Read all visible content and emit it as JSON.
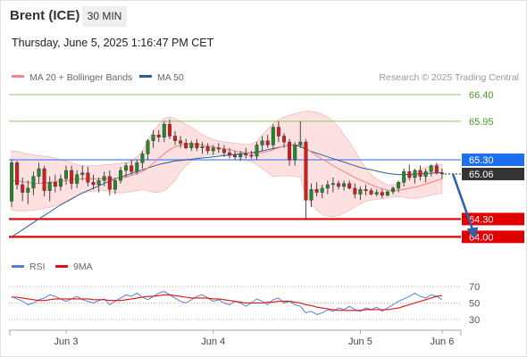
{
  "header": {
    "title": "Brent (ICE)",
    "timeframe": "30 MIN",
    "datetime": "Thursday, June 5, 2025 1:16:47 PM CET"
  },
  "legend": {
    "ma20_label": "MA 20 + Bollinger Bands",
    "ma50_label": "MA 50",
    "credit": "Research © 2025 Trading Central",
    "rsi_label": "RSI",
    "rsi_ma_label": "9MA"
  },
  "colors": {
    "candle_up": "#1f8a2a",
    "candle_down": "#d41e1e",
    "ma20": "#f08a8a",
    "ma50": "#2f5a96",
    "bollinger_fill": "#fde0e0",
    "support": "#e00000",
    "resistance": "#8cc766",
    "pivot": "#5b8ff0",
    "current_price": "#333333",
    "rsi": "#5a7fd6",
    "rsi_ma": "#dd1111",
    "arrow": "#2a64b0"
  },
  "chart_data": [
    {
      "type": "candlestick",
      "x_axis": {
        "ticks": [
          "Jun 3",
          "Jun 4",
          "Jun 5",
          "Jun 6"
        ],
        "tick_index": [
          10,
          37,
          64,
          79
        ]
      },
      "ylim": [
        63.9,
        66.55
      ],
      "levels": [
        {
          "value": 66.4,
          "label": "66.40",
          "kind": "resistance"
        },
        {
          "value": 65.95,
          "label": "65.95",
          "kind": "resistance"
        },
        {
          "value": 65.3,
          "label": "65.30",
          "kind": "pivot"
        },
        {
          "value": 64.3,
          "label": "64.30",
          "kind": "support"
        },
        {
          "value": 64.0,
          "label": "64.00",
          "kind": "support"
        }
      ],
      "current_price": {
        "value": 65.06,
        "label": "65.06"
      },
      "projection": {
        "from_index": 81,
        "from_value": 65.06,
        "to_index": 85,
        "to_value": 64.0
      },
      "ohlc": [
        [
          64.6,
          65.3,
          64.5,
          65.25
        ],
        [
          65.25,
          65.28,
          64.8,
          64.88
        ],
        [
          64.88,
          65.0,
          64.6,
          64.75
        ],
        [
          64.75,
          64.95,
          64.55,
          64.82
        ],
        [
          64.82,
          65.1,
          64.7,
          65.02
        ],
        [
          65.02,
          65.25,
          64.9,
          65.15
        ],
        [
          65.15,
          65.2,
          64.68,
          64.78
        ],
        [
          64.78,
          65.02,
          64.6,
          64.92
        ],
        [
          64.92,
          65.05,
          64.75,
          64.85
        ],
        [
          64.85,
          65.05,
          64.78,
          64.98
        ],
        [
          64.98,
          65.2,
          64.88,
          65.12
        ],
        [
          65.12,
          65.2,
          64.8,
          64.9
        ],
        [
          64.9,
          65.12,
          64.82,
          65.05
        ],
        [
          65.05,
          65.2,
          64.95,
          65.08
        ],
        [
          65.08,
          65.18,
          64.85,
          64.92
        ],
        [
          64.92,
          65.05,
          64.8,
          64.88
        ],
        [
          64.88,
          65.0,
          64.75,
          64.95
        ],
        [
          64.95,
          65.1,
          64.85,
          65.02
        ],
        [
          65.02,
          65.12,
          64.7,
          64.8
        ],
        [
          64.8,
          65.0,
          64.72,
          64.95
        ],
        [
          64.95,
          65.18,
          64.9,
          65.12
        ],
        [
          65.12,
          65.25,
          65.0,
          65.2
        ],
        [
          65.2,
          65.3,
          65.05,
          65.1
        ],
        [
          65.1,
          65.3,
          65.05,
          65.25
        ],
        [
          65.25,
          65.45,
          65.15,
          65.4
        ],
        [
          65.4,
          65.65,
          65.3,
          65.62
        ],
        [
          65.62,
          65.8,
          65.5,
          65.72
        ],
        [
          65.72,
          65.8,
          65.6,
          65.68
        ],
        [
          65.68,
          65.95,
          65.6,
          65.9
        ],
        [
          65.9,
          65.98,
          65.65,
          65.7
        ],
        [
          65.7,
          65.78,
          65.55,
          65.62
        ],
        [
          65.62,
          65.7,
          65.5,
          65.58
        ],
        [
          65.58,
          65.65,
          65.48,
          65.5
        ],
        [
          65.5,
          65.62,
          65.45,
          65.58
        ],
        [
          65.58,
          65.65,
          65.45,
          65.5
        ],
        [
          65.5,
          65.6,
          65.4,
          65.52
        ],
        [
          65.52,
          65.58,
          65.4,
          65.45
        ],
        [
          65.45,
          65.55,
          65.38,
          65.5
        ],
        [
          65.5,
          65.58,
          65.42,
          65.48
        ],
        [
          65.48,
          65.55,
          65.35,
          65.42
        ],
        [
          65.42,
          65.5,
          65.32,
          65.38
        ],
        [
          65.38,
          65.45,
          65.3,
          65.35
        ],
        [
          65.35,
          65.45,
          65.28,
          65.4
        ],
        [
          65.4,
          65.5,
          65.32,
          65.38
        ],
        [
          65.38,
          65.45,
          65.32,
          65.36
        ],
        [
          65.36,
          65.6,
          65.3,
          65.55
        ],
        [
          65.55,
          65.7,
          65.45,
          65.62
        ],
        [
          65.62,
          65.72,
          65.5,
          65.55
        ],
        [
          65.55,
          65.9,
          65.48,
          65.85
        ],
        [
          65.85,
          65.95,
          65.6,
          65.7
        ],
        [
          65.7,
          65.75,
          65.5,
          65.6
        ],
        [
          65.6,
          65.65,
          65.2,
          65.3
        ],
        [
          65.3,
          65.6,
          65.2,
          65.55
        ],
        [
          65.55,
          65.95,
          65.5,
          65.6
        ],
        [
          65.6,
          65.65,
          64.28,
          64.62
        ],
        [
          64.62,
          64.9,
          64.5,
          64.8
        ],
        [
          64.8,
          64.92,
          64.68,
          64.75
        ],
        [
          64.75,
          64.88,
          64.65,
          64.82
        ],
        [
          64.82,
          64.95,
          64.72,
          64.88
        ],
        [
          64.88,
          65.0,
          64.75,
          64.9
        ],
        [
          64.9,
          64.95,
          64.8,
          64.85
        ],
        [
          64.85,
          64.95,
          64.78,
          64.9
        ],
        [
          64.9,
          64.95,
          64.8,
          64.82
        ],
        [
          64.82,
          64.9,
          64.65,
          64.72
        ],
        [
          64.72,
          64.85,
          64.62,
          64.8
        ],
        [
          64.8,
          64.88,
          64.7,
          64.78
        ],
        [
          64.78,
          64.82,
          64.7,
          64.72
        ],
        [
          64.72,
          64.8,
          64.68,
          64.75
        ],
        [
          64.75,
          64.8,
          64.65,
          64.7
        ],
        [
          64.7,
          64.78,
          64.68,
          64.76
        ],
        [
          64.76,
          64.85,
          64.72,
          64.82
        ],
        [
          64.82,
          64.95,
          64.75,
          64.92
        ],
        [
          64.92,
          65.15,
          64.85,
          65.1
        ],
        [
          65.1,
          65.22,
          64.95,
          65.0
        ],
        [
          65.0,
          65.15,
          64.9,
          65.12
        ],
        [
          65.12,
          65.2,
          64.95,
          65.02
        ],
        [
          65.02,
          65.15,
          64.92,
          65.1
        ],
        [
          65.1,
          65.22,
          65.02,
          65.2
        ],
        [
          65.2,
          65.25,
          65.05,
          65.08
        ],
        [
          65.08,
          65.15,
          64.98,
          65.06
        ]
      ],
      "ma20": [
        64.95,
        64.94,
        64.93,
        64.92,
        64.9,
        64.9,
        64.91,
        64.92,
        64.93,
        64.94,
        64.95,
        64.96,
        64.97,
        64.98,
        64.98,
        64.98,
        64.98,
        64.98,
        64.98,
        64.98,
        64.99,
        65.01,
        65.04,
        65.07,
        65.1,
        65.16,
        65.24,
        65.32,
        65.4,
        65.47,
        65.52,
        65.55,
        65.57,
        65.57,
        65.56,
        65.55,
        65.53,
        65.52,
        65.5,
        65.48,
        65.47,
        65.45,
        65.43,
        65.42,
        65.41,
        65.41,
        65.42,
        65.44,
        65.47,
        65.5,
        65.53,
        65.54,
        65.55,
        65.56,
        65.5,
        65.43,
        65.37,
        65.31,
        65.26,
        65.2,
        65.15,
        65.1,
        65.05,
        65.0,
        64.96,
        64.92,
        64.88,
        64.84,
        64.81,
        64.79,
        64.78,
        64.79,
        64.8,
        64.82,
        64.84,
        64.86,
        64.89,
        64.92,
        64.95,
        64.98
      ],
      "bb_upper": [
        65.45,
        65.44,
        65.42,
        65.4,
        65.38,
        65.37,
        65.36,
        65.35,
        65.33,
        65.3,
        65.28,
        65.25,
        65.22,
        65.2,
        65.2,
        65.2,
        65.2,
        65.22,
        65.22,
        65.23,
        65.24,
        65.25,
        65.28,
        65.35,
        65.45,
        65.62,
        65.78,
        65.9,
        66.0,
        66.02,
        66.0,
        65.95,
        65.9,
        65.85,
        65.78,
        65.72,
        65.68,
        65.64,
        65.62,
        65.6,
        65.59,
        65.58,
        65.57,
        65.56,
        65.56,
        65.62,
        65.72,
        65.82,
        65.92,
        65.98,
        66.02,
        66.05,
        66.08,
        66.1,
        66.12,
        66.12,
        66.1,
        66.07,
        66.02,
        65.95,
        65.85,
        65.72,
        65.6,
        65.45,
        65.3,
        65.15,
        65.05,
        64.98,
        64.92,
        64.88,
        64.88,
        64.9,
        64.95,
        65.02,
        65.08,
        65.14,
        65.18,
        65.2,
        65.22,
        65.22
      ],
      "bb_lower": [
        64.45,
        64.44,
        64.44,
        64.44,
        64.45,
        64.46,
        64.48,
        64.5,
        64.52,
        64.55,
        64.6,
        64.65,
        64.7,
        64.74,
        64.76,
        64.77,
        64.78,
        64.78,
        64.76,
        64.75,
        64.74,
        64.75,
        64.76,
        64.78,
        64.8,
        64.78,
        64.75,
        64.75,
        64.78,
        64.85,
        64.95,
        65.1,
        65.2,
        65.28,
        65.33,
        65.36,
        65.38,
        65.39,
        65.39,
        65.38,
        65.36,
        65.34,
        65.32,
        65.29,
        65.27,
        65.22,
        65.15,
        65.08,
        65.02,
        65.02,
        65.03,
        65.03,
        65.02,
        65.0,
        64.7,
        64.55,
        64.45,
        64.38,
        64.35,
        64.34,
        64.36,
        64.4,
        64.45,
        64.5,
        64.55,
        64.6,
        64.62,
        64.63,
        64.64,
        64.66,
        64.67,
        64.68,
        64.67,
        64.65,
        64.65,
        64.66,
        64.68,
        64.7,
        64.72,
        64.74
      ],
      "ma50": [
        64.0,
        64.06,
        64.12,
        64.18,
        64.24,
        64.3,
        64.36,
        64.42,
        64.48,
        64.54,
        64.59,
        64.64,
        64.69,
        64.74,
        64.78,
        64.82,
        64.86,
        64.9,
        64.94,
        64.98,
        65.01,
        65.04,
        65.07,
        65.1,
        65.13,
        65.16,
        65.19,
        65.22,
        65.24,
        65.26,
        65.28,
        65.29,
        65.3,
        65.31,
        65.32,
        65.33,
        65.34,
        65.35,
        65.36,
        65.37,
        65.38,
        65.39,
        65.4,
        65.41,
        65.42,
        65.43,
        65.45,
        65.47,
        65.49,
        65.51,
        65.53,
        65.55,
        65.55,
        65.52,
        65.48,
        65.44,
        65.41,
        65.38,
        65.35,
        65.32,
        65.29,
        65.26,
        65.23,
        65.2,
        65.17,
        65.15,
        65.13,
        65.11,
        65.09,
        65.07,
        65.06,
        65.05,
        65.05,
        65.05,
        65.06,
        65.06,
        65.07,
        65.07,
        65.08,
        65.08
      ]
    },
    {
      "type": "line",
      "name": "RSI",
      "ylim": [
        25,
        75
      ],
      "levels": [
        {
          "value": 70,
          "label": "70"
        },
        {
          "value": 50,
          "label": "50"
        },
        {
          "value": 30,
          "label": "30"
        }
      ],
      "rsi": [
        58,
        55,
        52,
        48,
        50,
        54,
        56,
        60,
        58,
        55,
        52,
        55,
        58,
        54,
        52,
        50,
        53,
        55,
        48,
        52,
        56,
        60,
        58,
        62,
        57,
        54,
        58,
        62,
        64,
        60,
        56,
        52,
        50,
        54,
        58,
        60,
        56,
        52,
        54,
        50,
        48,
        52,
        50,
        46,
        50,
        55,
        52,
        48,
        54,
        56,
        50,
        52,
        48,
        46,
        38,
        40,
        36,
        38,
        42,
        40,
        44,
        42,
        46,
        42,
        40,
        44,
        42,
        45,
        40,
        44,
        48,
        52,
        55,
        58,
        62,
        58,
        56,
        60,
        58,
        54
      ],
      "rsi_ma": [
        57,
        57,
        56,
        55,
        54,
        53,
        53,
        54,
        55,
        55,
        55,
        55,
        55,
        55,
        55,
        54,
        54,
        54,
        53,
        53,
        53,
        54,
        55,
        56,
        57,
        58,
        58,
        59,
        60,
        60,
        59,
        58,
        57,
        56,
        56,
        56,
        56,
        55,
        55,
        54,
        53,
        52,
        51,
        50,
        50,
        50,
        50,
        51,
        51,
        52,
        52,
        52,
        51,
        50,
        48,
        47,
        45,
        44,
        43,
        42,
        41,
        41,
        41,
        41,
        41,
        42,
        42,
        42,
        42,
        42,
        43,
        44,
        46,
        48,
        50,
        52,
        54,
        56,
        58,
        59
      ]
    }
  ]
}
